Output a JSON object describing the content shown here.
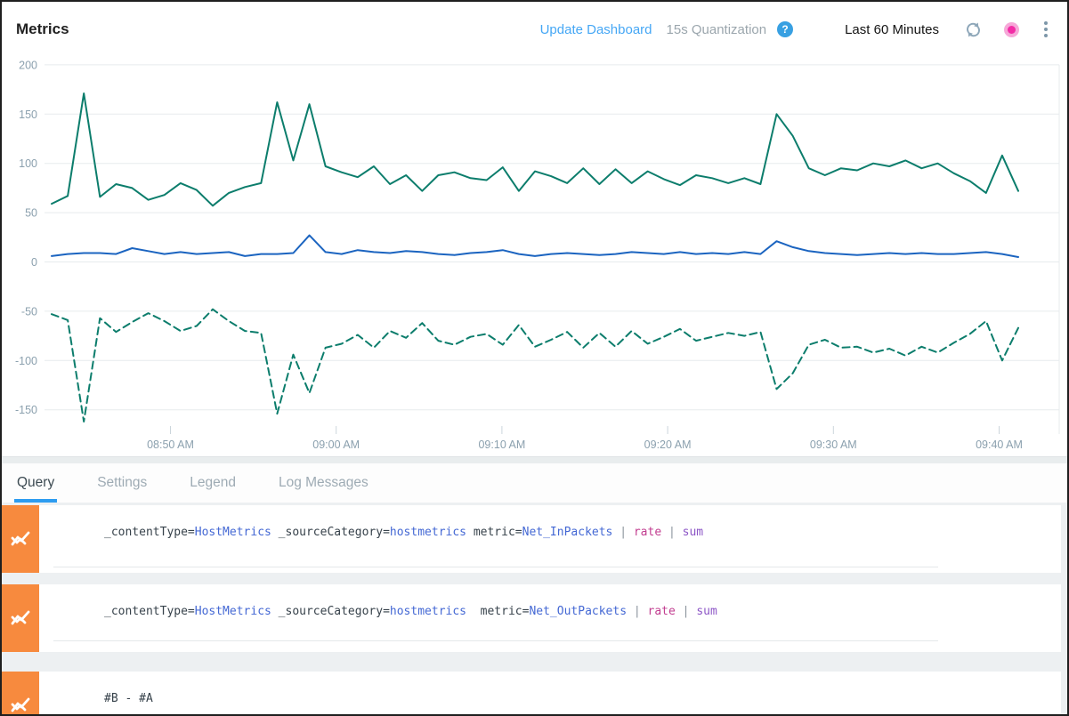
{
  "header": {
    "title": "Metrics",
    "update_dashboard_label": "Update Dashboard",
    "quantization_label": "15s Quantization",
    "help_glyph": "?",
    "time_range_label": "Last 60 Minutes",
    "link_color": "#45a7f5",
    "live_dot_color": "#f32ca6"
  },
  "tabs": [
    {
      "label": "Query",
      "active": true
    },
    {
      "label": "Settings",
      "active": false
    },
    {
      "label": "Legend",
      "active": false
    },
    {
      "label": "Log Messages",
      "active": false
    }
  ],
  "queries": [
    {
      "row": "A",
      "icon": "metrics-zigzag-icon",
      "tokens": [
        [
          "plain",
          "_contentType="
        ],
        [
          "value",
          "HostMetrics"
        ],
        [
          "plain",
          " _sourceCategory="
        ],
        [
          "value",
          "hostmetrics"
        ],
        [
          "plain",
          " metric="
        ],
        [
          "value",
          "Net_InPackets"
        ],
        [
          "pipe",
          " | "
        ],
        [
          "rate",
          "rate"
        ],
        [
          "pipe",
          " | "
        ],
        [
          "sum",
          "sum"
        ]
      ]
    },
    {
      "row": "B",
      "icon": "metrics-zigzag-icon",
      "tokens": [
        [
          "plain",
          "_contentType="
        ],
        [
          "value",
          "HostMetrics"
        ],
        [
          "plain",
          " _sourceCategory="
        ],
        [
          "value",
          "hostmetrics"
        ],
        [
          "plain",
          "  metric="
        ],
        [
          "value",
          "Net_OutPackets"
        ],
        [
          "pipe",
          " | "
        ],
        [
          "rate",
          "rate"
        ],
        [
          "pipe",
          " | "
        ],
        [
          "sum",
          "sum"
        ]
      ]
    },
    {
      "row": "C",
      "icon": "metrics-zigzag-icon",
      "tokens": [
        [
          "plain",
          "#B - #A"
        ]
      ]
    }
  ],
  "chart_data": {
    "type": "line",
    "title": "Metrics",
    "quantization": "15s",
    "time_window": "Last 60 Minutes",
    "grid": true,
    "legend": "none",
    "x_axis": {
      "tick_labels": [
        "08:50 AM",
        "09:00 AM",
        "09:10 AM",
        "09:20 AM",
        "09:30 AM",
        "09:40 AM"
      ]
    },
    "y_axis": {
      "ticks": [
        200,
        150,
        100,
        50,
        0,
        -50,
        -100,
        -150
      ],
      "range": [
        -170,
        210
      ]
    },
    "series": [
      {
        "id": "A",
        "query_ref": "Net_InPackets | rate | sum",
        "style": "solid",
        "color": "#0c7d6c",
        "values": [
          59,
          67,
          171,
          66,
          79,
          75,
          63,
          68,
          80,
          73,
          57,
          70,
          76,
          80,
          162,
          103,
          160,
          97,
          91,
          86,
          97,
          79,
          88,
          72,
          88,
          91,
          85,
          83,
          96,
          72,
          92,
          87,
          80,
          95,
          79,
          94,
          80,
          92,
          84,
          78,
          88,
          85,
          80,
          85,
          79,
          150,
          128,
          95,
          88,
          95,
          93,
          100,
          97,
          103,
          95,
          100,
          90,
          82,
          70,
          108,
          72
        ]
      },
      {
        "id": "B",
        "query_ref": "Net_OutPackets | rate | sum",
        "style": "solid",
        "color": "#1b64c0",
        "values": [
          6,
          8,
          9,
          9,
          8,
          14,
          11,
          8,
          10,
          8,
          9,
          10,
          6,
          8,
          8,
          9,
          27,
          10,
          8,
          12,
          10,
          9,
          11,
          10,
          8,
          7,
          9,
          10,
          12,
          8,
          6,
          8,
          9,
          8,
          7,
          8,
          10,
          9,
          8,
          10,
          8,
          9,
          8,
          10,
          8,
          21,
          15,
          11,
          9,
          8,
          7,
          8,
          9,
          8,
          9,
          8,
          8,
          9,
          10,
          8,
          5
        ]
      },
      {
        "id": "C",
        "query_ref": "#B - #A",
        "style": "dashed",
        "color": "#0c7d6c",
        "values": [
          -53,
          -59,
          -162,
          -57,
          -71,
          -61,
          -52,
          -60,
          -70,
          -65,
          -48,
          -60,
          -70,
          -72,
          -154,
          -94,
          -133,
          -87,
          -83,
          -74,
          -87,
          -70,
          -77,
          -62,
          -80,
          -84,
          -76,
          -73,
          -84,
          -64,
          -86,
          -79,
          -71,
          -87,
          -72,
          -86,
          -70,
          -83,
          -76,
          -68,
          -80,
          -76,
          -72,
          -75,
          -71,
          -129,
          -113,
          -84,
          -79,
          -87,
          -86,
          -92,
          -88,
          -95,
          -86,
          -92,
          -82,
          -73,
          -60,
          -100,
          -67
        ]
      }
    ]
  }
}
